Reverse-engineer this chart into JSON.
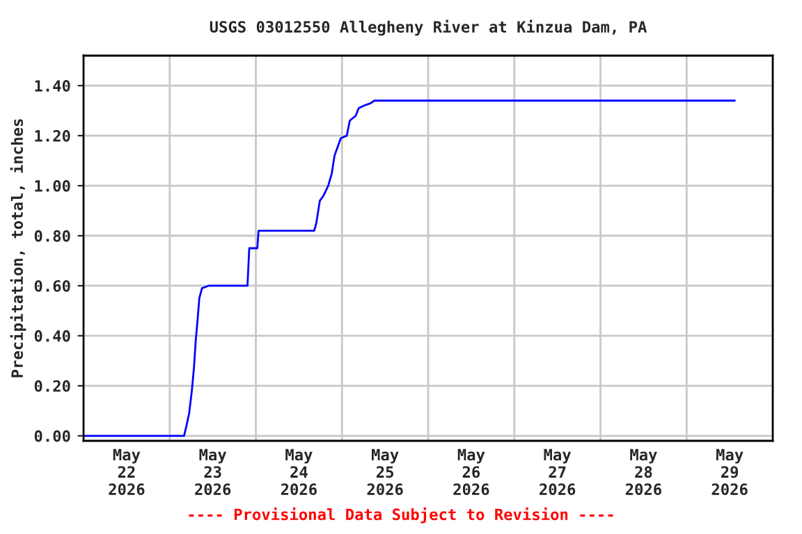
{
  "chart_data": {
    "type": "line",
    "title": "USGS 03012550 Allegheny River at Kinzua Dam, PA",
    "ylabel": "Precipitation, total, inches",
    "x": [
      "2026-05-22T00:00",
      "2026-05-23T04:00",
      "2026-05-23T04:40",
      "2026-05-23T05:25",
      "2026-05-23T06:10",
      "2026-05-23T06:45",
      "2026-05-23T07:15",
      "2026-05-23T07:45",
      "2026-05-23T08:15",
      "2026-05-23T09:00",
      "2026-05-23T10:50",
      "2026-05-23T21:40",
      "2026-05-23T22:10",
      "2026-05-24T00:25",
      "2026-05-24T00:45",
      "2026-05-24T16:15",
      "2026-05-24T16:50",
      "2026-05-24T17:50",
      "2026-05-24T18:50",
      "2026-05-24T20:10",
      "2026-05-24T21:10",
      "2026-05-24T21:55",
      "2026-05-24T22:55",
      "2026-05-24T23:40",
      "2026-05-25T01:20",
      "2026-05-25T02:10",
      "2026-05-25T03:50",
      "2026-05-25T04:40",
      "2026-05-25T06:05",
      "2026-05-25T08:00",
      "2026-05-25T09:00",
      "2026-05-29T13:25"
    ],
    "series": [
      {
        "color": "#0000ff",
        "values": [
          0.0,
          0.0,
          0.04,
          0.09,
          0.18,
          0.27,
          0.38,
          0.46,
          0.55,
          0.59,
          0.6,
          0.6,
          0.75,
          0.75,
          0.82,
          0.82,
          0.85,
          0.94,
          0.96,
          1.0,
          1.05,
          1.12,
          1.16,
          1.19,
          1.2,
          1.26,
          1.28,
          1.31,
          1.32,
          1.33,
          1.34,
          1.34
        ]
      }
    ],
    "xlim": [
      "2026-05-22T00:00",
      "2026-05-30T00:00"
    ],
    "xticks": [
      {
        "value": "2026-05-22T12:00",
        "label": "May\n22\n2026"
      },
      {
        "value": "2026-05-23T12:00",
        "label": "May\n23\n2026"
      },
      {
        "value": "2026-05-24T12:00",
        "label": "May\n24\n2026"
      },
      {
        "value": "2026-05-25T12:00",
        "label": "May\n25\n2026"
      },
      {
        "value": "2026-05-26T12:00",
        "label": "May\n26\n2026"
      },
      {
        "value": "2026-05-27T12:00",
        "label": "May\n27\n2026"
      },
      {
        "value": "2026-05-28T12:00",
        "label": "May\n28\n2026"
      },
      {
        "value": "2026-05-29T12:00",
        "label": "May\n29\n2026"
      },
      {
        "value": "2026-05-23T00:00",
        "label": null
      },
      {
        "value": "2026-05-24T00:00",
        "label": null
      },
      {
        "value": "2026-05-25T00:00",
        "label": null
      },
      {
        "value": "2026-05-26T00:00",
        "label": null
      },
      {
        "value": "2026-05-27T00:00",
        "label": null
      },
      {
        "value": "2026-05-28T00:00",
        "label": null
      },
      {
        "value": "2026-05-29T00:00",
        "label": null
      }
    ],
    "ylim": [
      -0.02,
      1.52
    ],
    "yticks": [
      {
        "value": 0,
        "label": "0.00"
      },
      {
        "value": 0.2,
        "label": "0.20"
      },
      {
        "value": 0.4,
        "label": "0.40"
      },
      {
        "value": 0.6,
        "label": "0.60"
      },
      {
        "value": 0.8,
        "label": "0.80"
      },
      {
        "value": 1.0,
        "label": "1.00"
      },
      {
        "value": 1.2,
        "label": "1.20"
      },
      {
        "value": 1.4,
        "label": "1.40"
      }
    ],
    "grid": true,
    "marker": "none",
    "line_style": "solid",
    "annotations": [
      "---- Provisional Data Subject to Revision ----"
    ]
  }
}
